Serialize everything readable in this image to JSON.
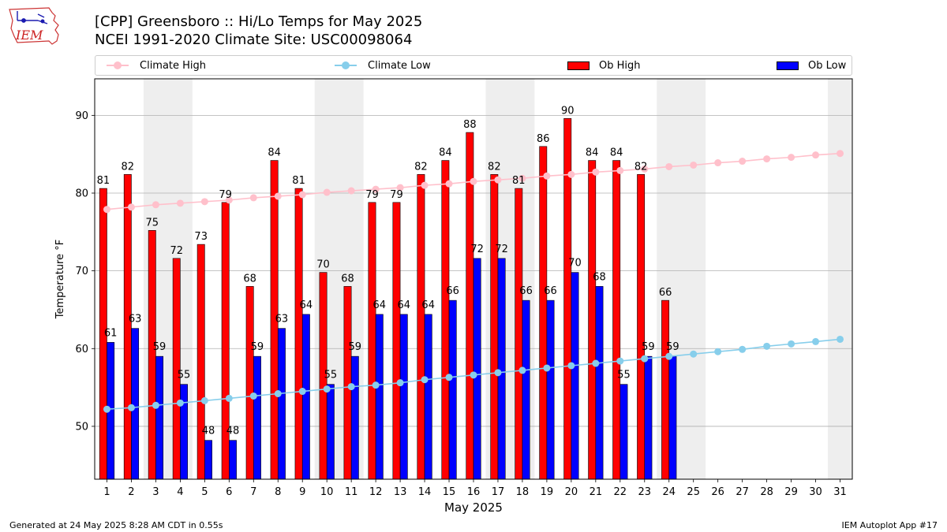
{
  "header": {
    "title_line1": "[CPP] Greensboro :: Hi/Lo Temps for May 2025",
    "title_line2": "NCEI 1991-2020 Climate Site: USC00098064",
    "logo_text": "IEM"
  },
  "legend": {
    "climate_high": "Climate High",
    "climate_low": "Climate Low",
    "ob_high": "Ob High",
    "ob_low": "Ob Low"
  },
  "colors": {
    "climate_high": "#ffc0cb",
    "climate_low": "#87ceeb",
    "ob_high": "#ff0000",
    "ob_low": "#0000ff",
    "weekend_shade": "#eeeeee",
    "grid": "#b0b0b0"
  },
  "footer": {
    "generated": "Generated at 24 May 2025 8:28 AM CDT in 0.55s",
    "app": "IEM Autoplot App #17"
  },
  "chart_data": {
    "type": "bar",
    "title": "[CPP] Greensboro :: Hi/Lo Temps for May 2025",
    "xlabel": "May 2025",
    "ylabel": "Temperature °F",
    "ylim": [
      43.2,
      94.7
    ],
    "xlim": [
      0.5,
      31.5
    ],
    "yticks": [
      50,
      60,
      70,
      80,
      90
    ],
    "grid": "horizontal",
    "legend_position": "top",
    "shaded_days": [
      [
        3,
        4
      ],
      [
        10,
        11
      ],
      [
        17,
        18
      ],
      [
        24,
        25
      ],
      [
        31,
        31
      ]
    ],
    "categories": [
      "1",
      "2",
      "3",
      "4",
      "5",
      "6",
      "7",
      "8",
      "9",
      "10",
      "11",
      "12",
      "13",
      "14",
      "15",
      "16",
      "17",
      "18",
      "19",
      "20",
      "21",
      "22",
      "23",
      "24",
      "25",
      "26",
      "27",
      "28",
      "29",
      "30",
      "31"
    ],
    "series": [
      {
        "name": "Ob High",
        "kind": "bar",
        "values": [
          81,
          82,
          75,
          72,
          73,
          79,
          68,
          84,
          81,
          70,
          68,
          79,
          79,
          82,
          84,
          88,
          82,
          81,
          86,
          90,
          84,
          84,
          82,
          66,
          null,
          null,
          null,
          null,
          null,
          null,
          null
        ],
        "bar_tops": [
          80.6,
          82.4,
          75.2,
          71.6,
          73.4,
          78.8,
          68.0,
          84.2,
          80.6,
          69.8,
          68.0,
          78.8,
          78.8,
          82.4,
          84.2,
          87.8,
          82.4,
          80.6,
          86.0,
          89.6,
          84.2,
          84.2,
          82.4,
          66.2,
          null,
          null,
          null,
          null,
          null,
          null,
          null
        ]
      },
      {
        "name": "Ob Low",
        "kind": "bar",
        "values": [
          61,
          63,
          59,
          55,
          48,
          48,
          59,
          63,
          64,
          55,
          59,
          64,
          64,
          64,
          66,
          72,
          72,
          66,
          66,
          70,
          68,
          55,
          59,
          59,
          null,
          null,
          null,
          null,
          null,
          null,
          null
        ],
        "bar_tops": [
          60.8,
          62.6,
          59.0,
          55.4,
          48.2,
          48.2,
          59.0,
          62.6,
          64.4,
          55.4,
          59.0,
          64.4,
          64.4,
          64.4,
          66.2,
          71.6,
          71.6,
          66.2,
          66.2,
          69.8,
          68.0,
          55.4,
          59.0,
          59.0,
          null,
          null,
          null,
          null,
          null,
          null,
          null
        ]
      },
      {
        "name": "Climate High",
        "kind": "line",
        "values": [
          77.9,
          78.2,
          78.5,
          78.7,
          78.9,
          79.1,
          79.4,
          79.6,
          79.8,
          80.1,
          80.3,
          80.5,
          80.7,
          81.0,
          81.2,
          81.5,
          81.7,
          81.9,
          82.2,
          82.4,
          82.7,
          82.9,
          83.1,
          83.4,
          83.6,
          83.9,
          84.1,
          84.4,
          84.6,
          84.9,
          85.1
        ]
      },
      {
        "name": "Climate Low",
        "kind": "line",
        "values": [
          52.2,
          52.4,
          52.7,
          53.0,
          53.3,
          53.6,
          53.9,
          54.2,
          54.5,
          54.8,
          55.1,
          55.3,
          55.6,
          56.0,
          56.3,
          56.6,
          56.9,
          57.2,
          57.5,
          57.8,
          58.1,
          58.4,
          58.7,
          59.0,
          59.3,
          59.6,
          59.9,
          60.3,
          60.6,
          60.9,
          61.2
        ]
      }
    ]
  }
}
